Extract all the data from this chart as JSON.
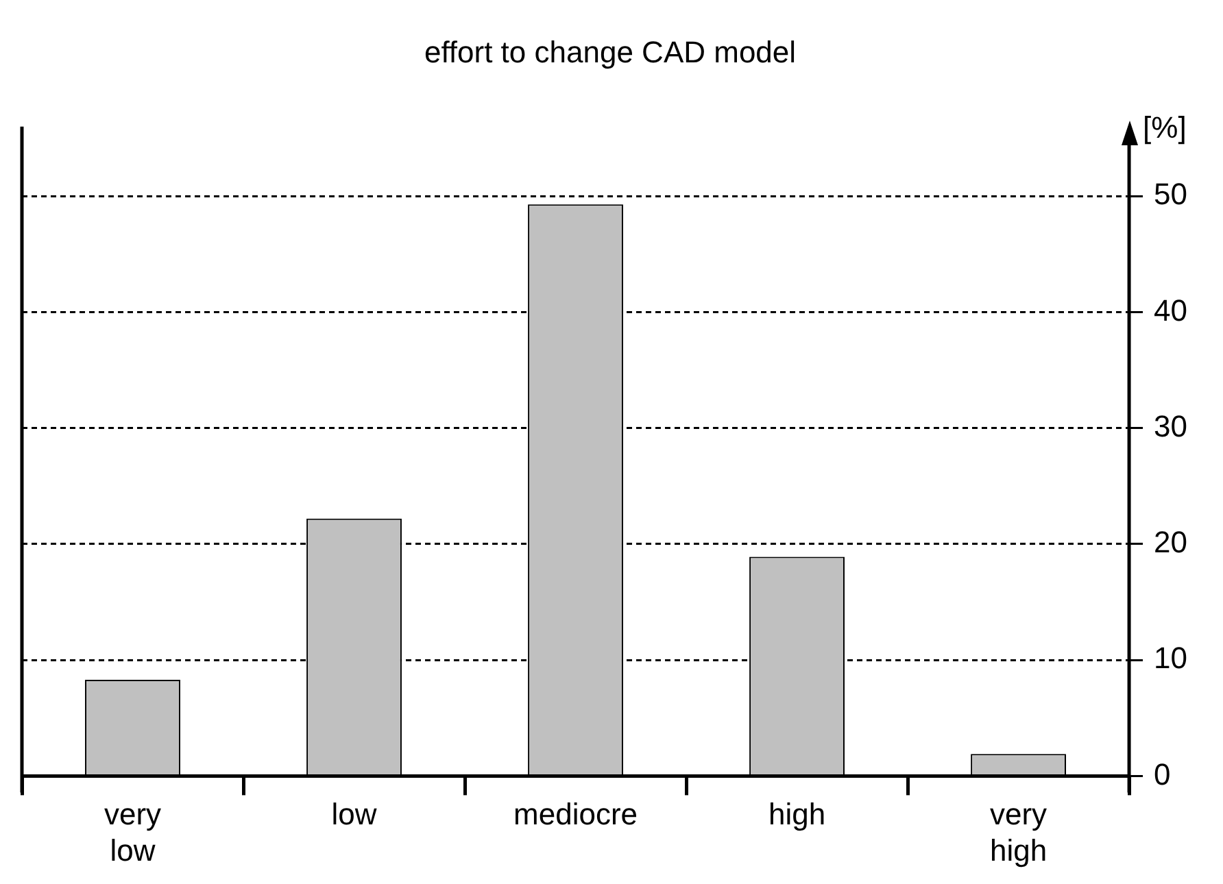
{
  "chart_data": {
    "type": "bar",
    "title": "effort to change CAD model",
    "ylabel": "[%]",
    "categories": [
      "very low",
      "low",
      "mediocre",
      "high",
      "very high"
    ],
    "values": [
      8.3,
      22.2,
      49.3,
      18.9,
      1.9
    ],
    "color": "#c0c0c0",
    "ylim": [
      0,
      56
    ],
    "yticks": [
      0,
      10,
      20,
      30,
      40,
      50
    ],
    "grid": "y",
    "legend": false
  }
}
